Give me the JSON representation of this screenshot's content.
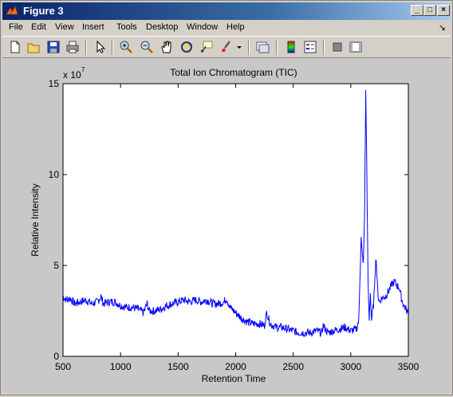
{
  "window": {
    "title": "Figure 3"
  },
  "menu": {
    "items": [
      "File",
      "Edit",
      "View",
      "Insert",
      "Tools",
      "Desktop",
      "Window",
      "Help"
    ],
    "arrow": "↘"
  },
  "toolbar": {
    "icons": [
      "new-figure-icon",
      "open-icon",
      "save-icon",
      "print-icon",
      "edit-plot-arrow-icon",
      "zoom-in-icon",
      "zoom-out-icon",
      "pan-hand-icon",
      "rotate-3d-icon",
      "data-cursor-icon",
      "brush-icon",
      "brush-dropdown-icon",
      "link-plot-icon",
      "colorbar-icon",
      "legend-icon",
      "hide-plot-tools-icon",
      "show-plot-tools-icon"
    ]
  },
  "colors": {
    "line": "#0000ff",
    "titlebar": "#0a246a",
    "canvas": "#c8c8c8"
  },
  "chart_data": {
    "type": "line",
    "title": "Total Ion Chromatogram (TIC)",
    "xlabel": "Retention Time",
    "ylabel": "Relative Intensity",
    "exponent_label": "x 10",
    "exponent_power": "7",
    "xlim": [
      500,
      3500
    ],
    "ylim": [
      0,
      15
    ],
    "xticks": [
      500,
      1000,
      1500,
      2000,
      2500,
      3000,
      3500
    ],
    "yticks": [
      0,
      5,
      10,
      15
    ],
    "xticklabels": [
      "500",
      "1000",
      "1500",
      "2000",
      "2500",
      "3000",
      "3500"
    ],
    "yticklabels": [
      "0",
      "5",
      "10",
      "15"
    ],
    "series": [
      {
        "x": [
          500,
          530,
          560,
          600,
          650,
          700,
          750,
          800,
          830,
          850,
          900,
          950,
          1000,
          1050,
          1100,
          1150,
          1200,
          1230,
          1250,
          1300,
          1350,
          1400,
          1450,
          1500,
          1550,
          1600,
          1650,
          1700,
          1750,
          1800,
          1850,
          1900,
          1920,
          1950,
          2000,
          2050,
          2100,
          2150,
          2200,
          2250,
          2270,
          2300,
          2350,
          2400,
          2450,
          2500,
          2550,
          2600,
          2650,
          2700,
          2750,
          2760,
          2800,
          2850,
          2900,
          2950,
          3000,
          3050,
          3070,
          3080,
          3090,
          3100,
          3110,
          3120,
          3130,
          3140,
          3150,
          3160,
          3170,
          3180,
          3190,
          3200,
          3210,
          3220,
          3230,
          3240,
          3250,
          3270,
          3300,
          3330,
          3360,
          3380,
          3400,
          3420,
          3440,
          3460,
          3480,
          3500
        ],
        "y": [
          3.3,
          3.1,
          3.2,
          2.9,
          3.0,
          3.1,
          2.9,
          3.0,
          3.3,
          2.9,
          3.0,
          3.0,
          2.8,
          2.7,
          2.7,
          2.6,
          2.4,
          2.9,
          2.5,
          2.5,
          2.6,
          2.8,
          2.9,
          3.0,
          3.1,
          3.0,
          3.1,
          3.0,
          3.1,
          2.9,
          2.9,
          3.0,
          3.2,
          2.7,
          2.4,
          2.1,
          1.9,
          1.8,
          1.8,
          1.7,
          2.4,
          1.8,
          1.6,
          1.6,
          1.5,
          1.4,
          1.3,
          1.3,
          1.3,
          1.4,
          1.3,
          1.7,
          1.3,
          1.4,
          1.5,
          1.6,
          1.4,
          1.5,
          2.0,
          4.5,
          6.5,
          5.5,
          5.2,
          8.0,
          14.5,
          10.0,
          4.0,
          2.0,
          3.5,
          2.0,
          2.5,
          3.0,
          4.5,
          5.5,
          4.0,
          3.2,
          3.0,
          3.2,
          3.3,
          3.6,
          4.0,
          4.1,
          3.9,
          3.8,
          3.2,
          2.8,
          2.6,
          2.3
        ]
      }
    ]
  }
}
